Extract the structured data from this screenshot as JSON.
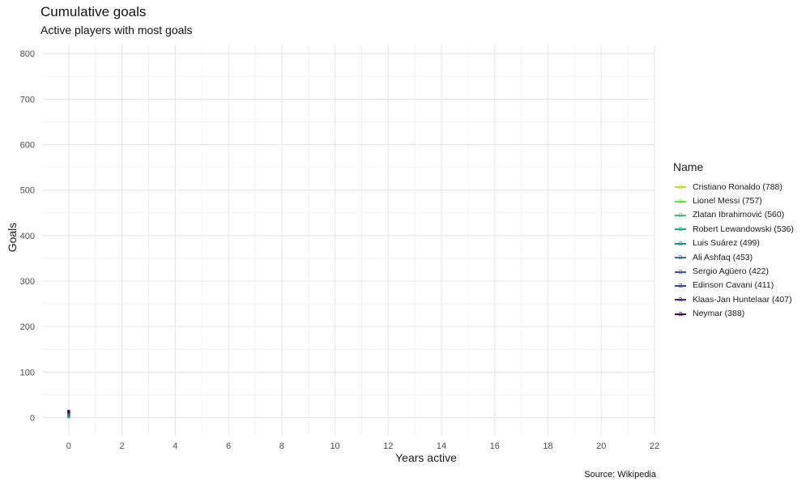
{
  "chart_data": {
    "type": "line",
    "title": "Cumulative goals",
    "subtitle": "Active players with most goals",
    "xlabel": "Years active",
    "ylabel": "Goals",
    "xlim": [
      -1,
      22
    ],
    "ylim": [
      -40,
      820
    ],
    "x_ticks": [
      0,
      2,
      4,
      6,
      8,
      10,
      12,
      14,
      16,
      18,
      20,
      22
    ],
    "y_ticks": [
      0,
      100,
      200,
      300,
      400,
      500,
      600,
      700,
      800
    ],
    "grid": true,
    "legend_title": "Name",
    "legend_position": "right",
    "caption": "Source: Wikipedia",
    "series": [
      {
        "name": "Cristiano Ronaldo (788)",
        "color": "#bddf26",
        "points": [
          [
            0,
            5
          ]
        ]
      },
      {
        "name": "Lionel Messi (757)",
        "color": "#7ad151",
        "points": [
          [
            0,
            1
          ]
        ]
      },
      {
        "name": "Zlatan Ibrahimović (560)",
        "color": "#44bf70",
        "points": [
          [
            0,
            3
          ]
        ]
      },
      {
        "name": "Robert Lewandowski (536)",
        "color": "#22a884",
        "points": [
          [
            0,
            2
          ]
        ]
      },
      {
        "name": "Luis Suárez (499)",
        "color": "#21918c",
        "points": [
          [
            0,
            4
          ]
        ]
      },
      {
        "name": "Ali Ashfaq (453)",
        "color": "#2a788e",
        "points": [
          [
            0,
            6
          ]
        ]
      },
      {
        "name": "Sergio Agüero (422)",
        "color": "#355f8d",
        "points": [
          [
            0,
            8
          ]
        ]
      },
      {
        "name": "Edinson Cavani (411)",
        "color": "#414487",
        "points": [
          [
            0,
            10
          ]
        ]
      },
      {
        "name": "Klaas-Jan Huntelaar (407)",
        "color": "#482475",
        "points": [
          [
            0,
            12
          ]
        ]
      },
      {
        "name": "Neymar (388)",
        "color": "#440154",
        "points": [
          [
            0,
            14
          ]
        ]
      }
    ]
  }
}
